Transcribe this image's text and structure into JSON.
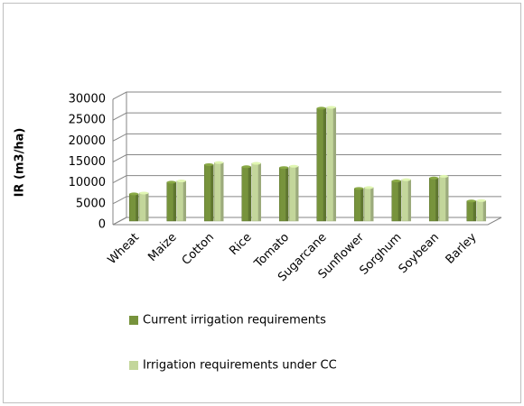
{
  "chart_data": {
    "type": "bar",
    "y_label": "IR (m3/ha)",
    "categories": [
      "Wheat",
      "Maize",
      "Cotton",
      "Rice",
      "Tomato",
      "Sugarcane",
      "Sunflower",
      "Sorghum",
      "Soybean",
      "Barley"
    ],
    "series": [
      {
        "name": "Current irrigation requirements",
        "color": "#77933c",
        "values": [
          6500,
          9300,
          13500,
          13000,
          12800,
          27000,
          7800,
          9600,
          10300,
          4800
        ]
      },
      {
        "name": "Irrigation requirements under CC",
        "color": "#c3d69b",
        "values": [
          6700,
          9600,
          14000,
          13800,
          13100,
          27200,
          8000,
          9900,
          10700,
          4900
        ]
      }
    ],
    "ylim": [
      0,
      30000
    ],
    "yticks": [
      0,
      5000,
      10000,
      15000,
      20000,
      25000,
      30000
    ],
    "grid": true
  }
}
